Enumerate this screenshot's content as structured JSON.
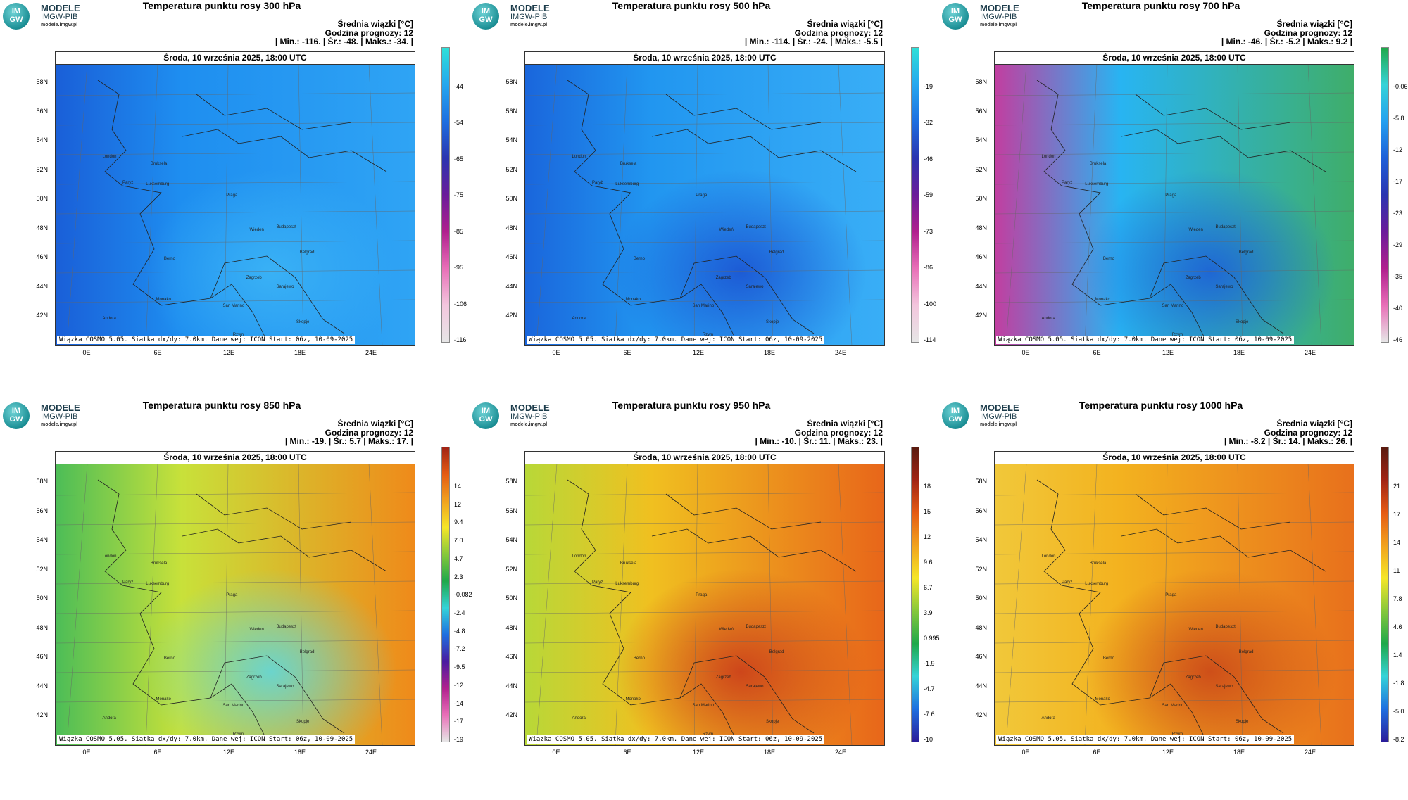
{
  "logo": {
    "badge_top": "IM",
    "badge_bottom": "GW",
    "line1": "MODELE",
    "line2": "IMGW-PIB",
    "line3": "modele.imgw.pl"
  },
  "common": {
    "date_label": "Środa, 10 września 2025, 18:00 UTC",
    "footer": "Wiązka COSMO 5.05. Siatka dx/dy: 7.0km. Dane wej: ICON Start: 06z, 10-09-2025",
    "stats_heading": "Średnia wiązki [°C]",
    "forecast_hour": "Godzina prognozy: 12",
    "lat_labels": [
      "58N",
      "56N",
      "54N",
      "52N",
      "50N",
      "48N",
      "46N",
      "44N",
      "42N"
    ],
    "lon_labels": [
      "0E",
      "6E",
      "12E",
      "18E",
      "24E"
    ],
    "cities": [
      "London",
      "Paryż",
      "Luksemburg",
      "Bruksela",
      "Praga",
      "Wiedeń",
      "Berno",
      "Zagrzeb",
      "Budapeszt",
      "Belgrad",
      "San Marino",
      "Sarajewo",
      "Monako",
      "Skopje",
      "Andora",
      "Rzym"
    ]
  },
  "panels": [
    {
      "title": "Temperatura punktu rosy 300 hPa",
      "stats_line": "| Min.: -116. | Śr.: -48. | Maks.: -34. |",
      "colorbar": [
        "-44",
        "-54",
        "-65",
        "-75",
        "-85",
        "-95",
        "-106",
        "-116"
      ],
      "colors": {
        "base": "#1e8ef0",
        "west": "#1a5fd8",
        "east": "#2fa4f4",
        "spot": "#3db6f6"
      }
    },
    {
      "title": "Temperatura punktu rosy 500 hPa",
      "stats_line": "| Min.: -114. | Śr.: -24. | Maks.: -5.5 |",
      "colorbar": [
        "-19",
        "-32",
        "-46",
        "-59",
        "-73",
        "-86",
        "-100",
        "-114"
      ],
      "colors": {
        "base": "#2196f0",
        "west": "#1a66dc",
        "east": "#39aef6",
        "spot": "#1a4fd0"
      }
    },
    {
      "title": "Temperatura punktu rosy 700 hPa",
      "stats_line": "| Min.: -46. | Śr.: -5.2 | Maks.: 9.2 |",
      "colorbar": [
        "-0.061",
        "-5.8",
        "-12",
        "-17",
        "-23",
        "-29",
        "-35",
        "-40",
        "-46"
      ],
      "colors": {
        "base": "#28b4f2",
        "west": "#c23ea0",
        "east": "#3fae6a",
        "spot": "#1b5ad8"
      }
    },
    {
      "title": "Temperatura punktu rosy 850 hPa",
      "stats_line": "| Min.: -19. | Śr.: 5.7 | Maks.: 17. |",
      "colorbar": [
        "14",
        "12",
        "9.4",
        "7.0",
        "4.7",
        "2.3",
        "-0.082",
        "-2.4",
        "-4.8",
        "-7.2",
        "-9.5",
        "-12",
        "-14",
        "-17",
        "-19"
      ],
      "colors": {
        "base": "#c8e13a",
        "west": "#4cbd57",
        "east": "#ef8a1a",
        "spot": "#58d8e8"
      }
    },
    {
      "title": "Temperatura punktu rosy 950 hPa",
      "stats_line": "| Min.: -10. | Śr.: 11. | Maks.: 23. |",
      "colorbar": [
        "18",
        "15",
        "12",
        "9.6",
        "6.7",
        "3.9",
        "0.995",
        "-1.9",
        "-4.7",
        "-7.6",
        "-10"
      ],
      "colors": {
        "base": "#f0c020",
        "west": "#b8d838",
        "east": "#e8661a",
        "spot": "#c8371a"
      }
    },
    {
      "title": "Temperatura punktu rosy 1000 hPa",
      "stats_line": "| Min.: -8.2 | Śr.: 14. | Maks.: 26. |",
      "colorbar": [
        "21",
        "17",
        "14",
        "11",
        "7.8",
        "4.6",
        "1.4",
        "-1.8",
        "-5.0",
        "-8.2"
      ],
      "colors": {
        "base": "#f3b21f",
        "west": "#f1c83a",
        "east": "#e8701c",
        "spot": "#c84218"
      }
    }
  ],
  "colorbar_gradients": [
    [
      "#2fe0d8",
      "#25a7ef",
      "#1e6fe0",
      "#2a35b0",
      "#6a1c9a",
      "#b0208e",
      "#e86fb7",
      "#f3c6dd",
      "#e6e6e6"
    ],
    [
      "#2fe0d8",
      "#25a7ef",
      "#1e6fe0",
      "#2a35b0",
      "#6a1c9a",
      "#b0208e",
      "#e86fb7",
      "#f3c6dd",
      "#e6e6e6"
    ],
    [
      "#1fa84a",
      "#35d3d8",
      "#25a0ef",
      "#1e5fd8",
      "#2a35b0",
      "#6a1c9a",
      "#b0208e",
      "#e86fb7",
      "#e6e6e6"
    ],
    [
      "#a12415",
      "#e55b14",
      "#f1a21e",
      "#f5e628",
      "#86c83b",
      "#1fa84a",
      "#35d3d8",
      "#1e6fe0",
      "#4a1ca0",
      "#b0208e",
      "#e86fb7",
      "#e6e6e6"
    ],
    [
      "#5a1b10",
      "#a12415",
      "#e55b14",
      "#f1a21e",
      "#f5e628",
      "#86c83b",
      "#1fa84a",
      "#35d3d8",
      "#1e6fe0",
      "#2a1c9a"
    ],
    [
      "#5a1b10",
      "#a12415",
      "#e55b14",
      "#f1a21e",
      "#f5e628",
      "#86c83b",
      "#1fa84a",
      "#35d3d8",
      "#1e6fe0",
      "#2a1c9a"
    ]
  ]
}
